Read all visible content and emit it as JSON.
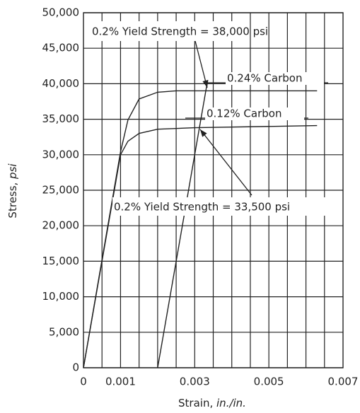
{
  "chart_data": {
    "type": "line",
    "xlabel": {
      "text": "Strain,",
      "unit": "in./in."
    },
    "ylabel": {
      "text": "Stress,",
      "unit": "psi"
    },
    "xlim": [
      0,
      0.007
    ],
    "ylim": [
      0,
      50000
    ],
    "xticks": [
      0,
      0.001,
      0.003,
      0.005,
      0.007
    ],
    "x_gridlines": [
      0.0005,
      0.001,
      0.0015,
      0.002,
      0.0025,
      0.003,
      0.0035,
      0.004,
      0.0045,
      0.005,
      0.0055,
      0.006,
      0.0065
    ],
    "yticks": [
      {
        "value": 0,
        "label": "0"
      },
      {
        "value": 5000,
        "label": "5,000"
      },
      {
        "value": 10000,
        "label": "10,000"
      },
      {
        "value": 15000,
        "label": "15,000"
      },
      {
        "value": 20000,
        "label": "20,000"
      },
      {
        "value": 25000,
        "label": "25,000"
      },
      {
        "value": 30000,
        "label": "30,000"
      },
      {
        "value": 35000,
        "label": "35,000"
      },
      {
        "value": 40000,
        "label": "40,000"
      },
      {
        "value": 45000,
        "label": "45,000"
      },
      {
        "value": 50000,
        "label": "50,000"
      }
    ],
    "grid": true,
    "series": [
      {
        "name": "0.24% Carbon",
        "color": "#222222",
        "x": [
          0,
          0.001,
          0.0012,
          0.0015,
          0.002,
          0.0025,
          0.0063
        ],
        "values": [
          0,
          30400,
          34900,
          37850,
          38800,
          39000,
          39000
        ]
      },
      {
        "name": "0.12% Carbon",
        "color": "#222222",
        "x": [
          0,
          0.001,
          0.0012,
          0.0015,
          0.002,
          0.003,
          0.0063
        ],
        "values": [
          0,
          30000,
          31900,
          33000,
          33600,
          33800,
          34100
        ]
      }
    ],
    "offset_line": {
      "x": [
        0.002,
        0.00334
      ],
      "values": [
        0,
        40200
      ]
    },
    "annotations": [
      "0.2% Yield Strength = 38,000 psi",
      "0.2% Yield Strength = 33,500 psi"
    ]
  }
}
